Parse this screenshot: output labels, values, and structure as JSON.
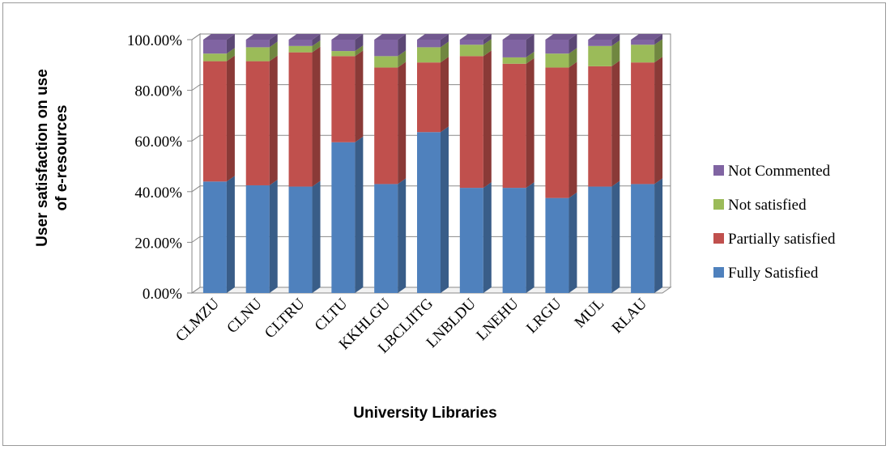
{
  "chart_data": {
    "type": "bar",
    "stacked": true,
    "style": "3d-stacked-percent",
    "categories": [
      "CLMZU",
      "CLNU",
      "CLTRU",
      "CLTU",
      "KKHLGU",
      "LBCLIITG",
      "LNBLDU",
      "LNEHU",
      "LRGU",
      "MUL",
      "RLAU"
    ],
    "series": [
      {
        "name": "Fully Satisfied",
        "color": "#4F81BD",
        "values": [
          44.0,
          42.5,
          42.0,
          59.5,
          43.0,
          63.5,
          41.5,
          41.5,
          37.5,
          42.0,
          43.0
        ]
      },
      {
        "name": "Partially satisfied",
        "color": "#C0504D",
        "values": [
          47.5,
          49.0,
          53.0,
          34.0,
          46.0,
          27.5,
          52.0,
          49.0,
          51.5,
          47.5,
          48.0
        ]
      },
      {
        "name": "Not satisfied",
        "color": "#9BBB59",
        "values": [
          3.0,
          5.5,
          2.5,
          2.0,
          4.5,
          6.0,
          4.5,
          2.5,
          5.5,
          8.0,
          7.0
        ]
      },
      {
        "name": "Not Commented",
        "color": "#8064A2",
        "values": [
          5.5,
          3.0,
          2.5,
          4.5,
          6.5,
          3.0,
          2.0,
          7.0,
          5.5,
          2.5,
          2.0
        ]
      }
    ],
    "xlabel": "University Libraries",
    "ylabel_lines": [
      "User satisfaction on use",
      "of e-resources"
    ],
    "ylim": [
      0,
      100
    ],
    "yticks": [
      "0.00%",
      "20.00%",
      "40.00%",
      "60.00%",
      "80.00%",
      "100.00%"
    ],
    "grid": true,
    "legend_position": "right",
    "legend_order": [
      "Not Commented",
      "Not satisfied",
      "Partially satisfied",
      "Fully Satisfied"
    ]
  }
}
